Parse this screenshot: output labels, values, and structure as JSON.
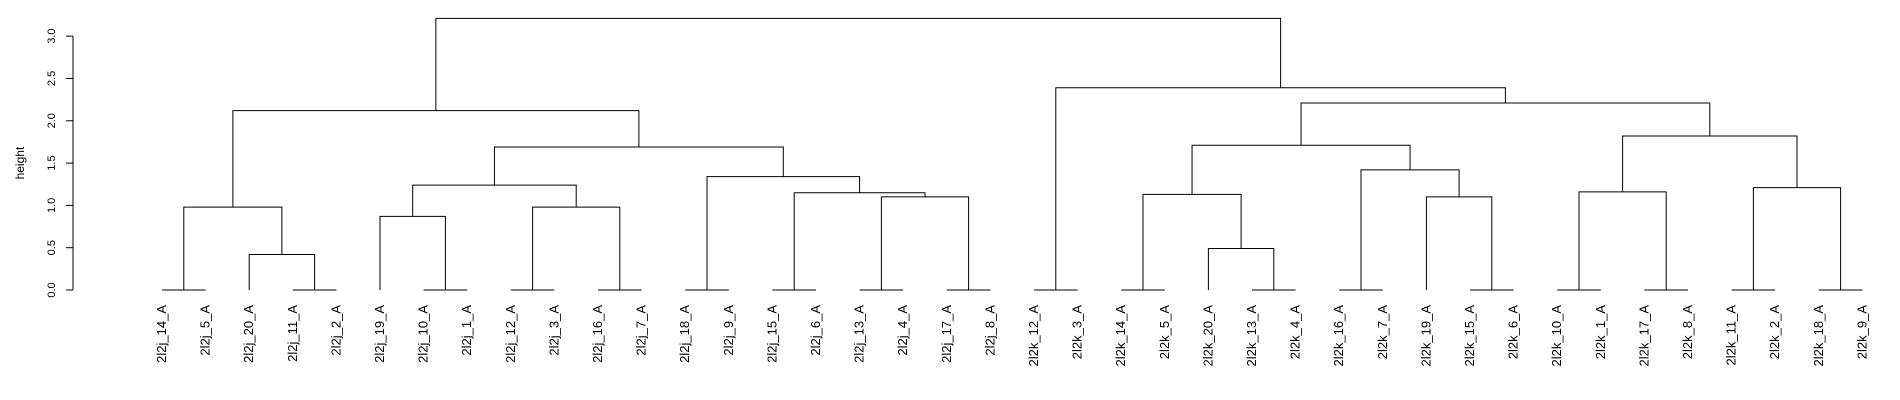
{
  "chart_data": {
    "type": "dendrogram",
    "ylabel": "height",
    "ylim": [
      0,
      3.25
    ],
    "yticks": [
      "0.0",
      "0.5",
      "1.0",
      "1.5",
      "2.0",
      "2.5",
      "3.0"
    ],
    "labels": [
      "2l2j_14_A",
      "2l2j_5_A",
      "2l2j_20_A",
      "2l2j_11_A",
      "2l2j_2_A",
      "2l2j_19_A",
      "2l2j_10_A",
      "2l2j_1_A",
      "2l2j_12_A",
      "2l2j_3_A",
      "2l2j_16_A",
      "2l2j_7_A",
      "2l2j_18_A",
      "2l2j_9_A",
      "2l2j_15_A",
      "2l2j_6_A",
      "2l2j_13_A",
      "2l2j_4_A",
      "2l2j_17_A",
      "2l2j_8_A",
      "2l2k_12_A",
      "2l2k_3_A",
      "2l2k_14_A",
      "2l2k_5_A",
      "2l2k_20_A",
      "2l2k_13_A",
      "2l2k_4_A",
      "2l2k_16_A",
      "2l2k_7_A",
      "2l2k_19_A",
      "2l2k_15_A",
      "2l2k_6_A",
      "2l2k_10_A",
      "2l2k_1_A",
      "2l2k_17_A",
      "2l2k_8_A",
      "2l2k_11_A",
      "2l2k_2_A",
      "2l2k_18_A",
      "2l2k_9_A"
    ],
    "merges": [
      {
        "left": "L0",
        "right": "L1",
        "height": 0.0
      },
      {
        "left": "L3",
        "right": "L4",
        "height": 0.0
      },
      {
        "left": "L2",
        "right": "M1",
        "height": 0.42
      },
      {
        "left": "M0",
        "right": "M2",
        "height": 0.98
      },
      {
        "left": "L6",
        "right": "L7",
        "height": 0.0
      },
      {
        "left": "L5",
        "right": "M4",
        "height": 0.87
      },
      {
        "left": "L8",
        "right": "L9",
        "height": 0.0
      },
      {
        "left": "L10",
        "right": "L11",
        "height": 0.0
      },
      {
        "left": "M6",
        "right": "M7",
        "height": 0.98
      },
      {
        "left": "M5",
        "right": "M8",
        "height": 1.24
      },
      {
        "left": "L12",
        "right": "L13",
        "height": 0.0
      },
      {
        "left": "L14",
        "right": "L15",
        "height": 0.0
      },
      {
        "left": "L16",
        "right": "L17",
        "height": 0.0
      },
      {
        "left": "L18",
        "right": "L19",
        "height": 0.0
      },
      {
        "left": "M12",
        "right": "M13",
        "height": 1.1
      },
      {
        "left": "M11",
        "right": "M14",
        "height": 1.15
      },
      {
        "left": "M10",
        "right": "M15",
        "height": 1.34
      },
      {
        "left": "M9",
        "right": "M16",
        "height": 1.69
      },
      {
        "left": "M3",
        "right": "M17",
        "height": 2.12
      },
      {
        "left": "L20",
        "right": "L21",
        "height": 0.0
      },
      {
        "left": "L22",
        "right": "L23",
        "height": 0.0
      },
      {
        "left": "L25",
        "right": "L26",
        "height": 0.0
      },
      {
        "left": "L24",
        "right": "M21",
        "height": 0.49
      },
      {
        "left": "M20",
        "right": "M22",
        "height": 1.13
      },
      {
        "left": "L27",
        "right": "L28",
        "height": 0.0
      },
      {
        "left": "L30",
        "right": "L31",
        "height": 0.0
      },
      {
        "left": "L29",
        "right": "M25",
        "height": 1.1
      },
      {
        "left": "M24",
        "right": "M26",
        "height": 1.42
      },
      {
        "left": "M23",
        "right": "M27",
        "height": 1.71
      },
      {
        "left": "L32",
        "right": "L33",
        "height": 0.0
      },
      {
        "left": "L34",
        "right": "L35",
        "height": 0.0
      },
      {
        "left": "M29",
        "right": "M30",
        "height": 1.16
      },
      {
        "left": "L36",
        "right": "L37",
        "height": 0.0
      },
      {
        "left": "L38",
        "right": "L39",
        "height": 0.0
      },
      {
        "left": "M32",
        "right": "M33",
        "height": 1.21
      },
      {
        "left": "M31",
        "right": "M34",
        "height": 1.82
      },
      {
        "left": "M28",
        "right": "M35",
        "height": 2.21
      },
      {
        "left": "M19",
        "right": "M36",
        "height": 2.39
      },
      {
        "left": "M18",
        "right": "M37",
        "height": 3.21
      }
    ]
  }
}
